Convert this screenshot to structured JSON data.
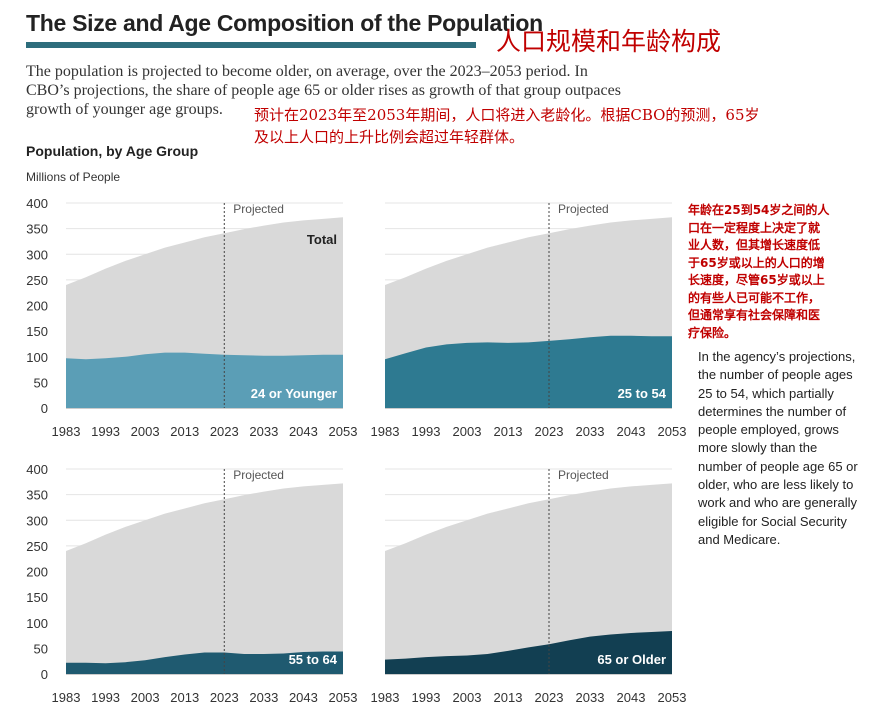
{
  "header": {
    "title": "The Size and Age Composition of the Population",
    "title_cn": "人口规模和年龄构成",
    "intro_lines": [
      "The population is projected to become older, on average, over the 2023–2053 period. In",
      "CBO’s projections, the share of people age 65 or older rises as growth of that group outpaces",
      "growth of younger age groups."
    ],
    "intro_cn_lines": [
      "预计在2023年至2053年期间，人口将进入老龄化。根据CBO的预测，65岁",
      "及以上人口的上升比例会超过年轻群体。"
    ]
  },
  "figure": {
    "section_title": "Population, by Age Group",
    "units": "Millions of People"
  },
  "sidebar": {
    "note_cn_lines": [
      "年龄在25到54岁之间的人",
      "口在一定程度上决定了就",
      "业人数，但其增长速度低",
      "于65岁或以上的人口的增",
      "长速度，尽管65岁或以上",
      "的有些人已可能不工作，",
      "但通常享有社会保障和医",
      "疗保险。"
    ],
    "note_en_lines": [
      "In the agency’s projections,",
      "the number of people ages",
      "25 to 54, which partially",
      "determines the number of",
      "people employed, grows",
      "more slowly than the",
      "number of people age 65 or",
      "older, who are less likely to",
      "work and who are generally",
      "eligible for Social Security",
      "and Medicare."
    ]
  },
  "colors": {
    "total_area": "#d9d9d9",
    "age_24_or_younger": "#5b9eb6",
    "age_25_to_54": "#2e7a91",
    "age_55_to_64": "#1f5a70",
    "age_65_or_older": "#123f52",
    "accent_rule": "#2d6d7c",
    "chinese_text": "#c00000"
  },
  "chart_data": [
    {
      "type": "area",
      "x": [
        1983,
        1988,
        1993,
        1998,
        2003,
        2008,
        2013,
        2018,
        2023,
        2028,
        2033,
        2038,
        2043,
        2048,
        2053
      ],
      "xticks": [
        1983,
        1993,
        2003,
        2013,
        2023,
        2033,
        2043,
        2053
      ],
      "yticks": [
        0,
        50,
        100,
        150,
        200,
        250,
        300,
        350,
        400
      ],
      "ylim": [
        0,
        400
      ],
      "divider_x": 2023,
      "divider_label": "Projected",
      "series": [
        {
          "name": "Total",
          "values": [
            240,
            255,
            272,
            287,
            300,
            313,
            323,
            333,
            341,
            349,
            356,
            362,
            366,
            369,
            372
          ]
        },
        {
          "name": "24 or Younger",
          "values": [
            97,
            95,
            97,
            100,
            105,
            108,
            108,
            106,
            104,
            103,
            102,
            102,
            103,
            104,
            104
          ]
        }
      ]
    },
    {
      "type": "area",
      "x": [
        1983,
        1988,
        1993,
        1998,
        2003,
        2008,
        2013,
        2018,
        2023,
        2028,
        2033,
        2038,
        2043,
        2048,
        2053
      ],
      "xticks": [
        1983,
        1993,
        2003,
        2013,
        2023,
        2033,
        2043,
        2053
      ],
      "yticks": [
        0,
        50,
        100,
        150,
        200,
        250,
        300,
        350,
        400
      ],
      "ylim": [
        0,
        400
      ],
      "divider_x": 2023,
      "divider_label": "Projected",
      "series": [
        {
          "name": "Total",
          "values": [
            240,
            255,
            272,
            287,
            300,
            313,
            323,
            333,
            341,
            349,
            356,
            362,
            366,
            369,
            372
          ]
        },
        {
          "name": "25 to 54",
          "values": [
            95,
            107,
            118,
            124,
            127,
            128,
            127,
            128,
            131,
            134,
            138,
            141,
            141,
            140,
            140
          ]
        }
      ]
    },
    {
      "type": "area",
      "x": [
        1983,
        1988,
        1993,
        1998,
        2003,
        2008,
        2013,
        2018,
        2023,
        2028,
        2033,
        2038,
        2043,
        2048,
        2053
      ],
      "xticks": [
        1983,
        1993,
        2003,
        2013,
        2023,
        2033,
        2043,
        2053
      ],
      "yticks": [
        0,
        50,
        100,
        150,
        200,
        250,
        300,
        350,
        400
      ],
      "ylim": [
        0,
        400
      ],
      "divider_x": 2023,
      "divider_label": "Projected",
      "series": [
        {
          "name": "Total",
          "values": [
            240,
            255,
            272,
            287,
            300,
            313,
            323,
            333,
            341,
            349,
            356,
            362,
            366,
            369,
            372
          ]
        },
        {
          "name": "55 to 64",
          "values": [
            22,
            22,
            21,
            23,
            27,
            33,
            38,
            42,
            42,
            39,
            39,
            40,
            43,
            44,
            44
          ]
        }
      ]
    },
    {
      "type": "area",
      "x": [
        1983,
        1988,
        1993,
        1998,
        2003,
        2008,
        2013,
        2018,
        2023,
        2028,
        2033,
        2038,
        2043,
        2048,
        2053
      ],
      "xticks": [
        1983,
        1993,
        2003,
        2013,
        2023,
        2033,
        2043,
        2053
      ],
      "yticks": [
        0,
        50,
        100,
        150,
        200,
        250,
        300,
        350,
        400
      ],
      "ylim": [
        0,
        400
      ],
      "divider_x": 2023,
      "divider_label": "Projected",
      "series": [
        {
          "name": "Total",
          "values": [
            240,
            255,
            272,
            287,
            300,
            313,
            323,
            333,
            341,
            349,
            356,
            362,
            366,
            369,
            372
          ]
        },
        {
          "name": "65 or Older",
          "values": [
            28,
            30,
            33,
            35,
            36,
            39,
            45,
            52,
            58,
            66,
            73,
            77,
            80,
            82,
            84
          ]
        }
      ]
    }
  ]
}
